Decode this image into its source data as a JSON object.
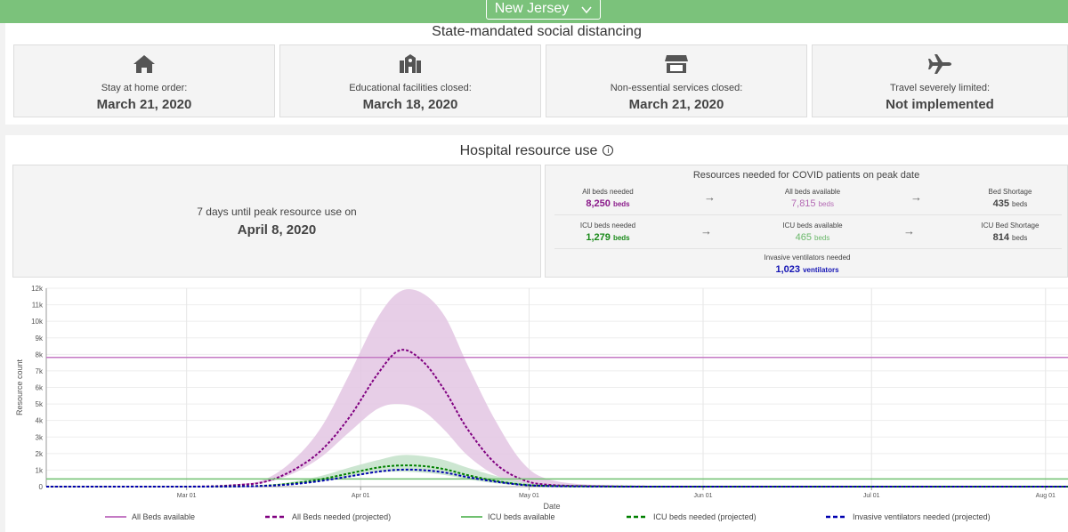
{
  "header": {
    "state": "New Jersey"
  },
  "social_distancing": {
    "title": "State-mandated social distancing",
    "cards": [
      {
        "icon": "home-icon",
        "label": "Stay at home order:",
        "value": "March 21, 2020"
      },
      {
        "icon": "school-icon",
        "label": "Educational facilities closed:",
        "value": "March 18, 2020"
      },
      {
        "icon": "store-icon",
        "label": "Non-essential services closed:",
        "value": "March 21, 2020"
      },
      {
        "icon": "airplane-icon",
        "label": "Travel severely limited:",
        "value": "Not implemented"
      }
    ]
  },
  "hospital": {
    "title": "Hospital resource use",
    "info_icon": "info-icon",
    "peak_line1": "7 days until peak resource use on",
    "peak_date": "April 8, 2020",
    "resources_title": "Resources needed for COVID patients on peak date",
    "all_beds_needed": {
      "label": "All beds needed",
      "value": "8,250",
      "unit": "beds"
    },
    "all_beds_available": {
      "label": "All beds available",
      "value": "7,815",
      "unit": "beds"
    },
    "bed_shortage": {
      "label": "Bed Shortage",
      "value": "435",
      "unit": "beds"
    },
    "icu_needed": {
      "label": "ICU beds needed",
      "value": "1,279",
      "unit": "beds"
    },
    "icu_available": {
      "label": "ICU beds available",
      "value": "465",
      "unit": "beds"
    },
    "icu_shortage": {
      "label": "ICU Bed Shortage",
      "value": "814",
      "unit": "beds"
    },
    "ventilators": {
      "label": "Invasive ventilators needed",
      "value": "1,023",
      "unit": "ventilators"
    }
  },
  "colors": {
    "header_green": "#7bc27b",
    "all_beds_available": "#c47ac4",
    "all_beds_needed": "#800080",
    "icu_available": "#70c070",
    "icu_needed": "#008000",
    "ventilators": "#0000b0",
    "band_purple": "#e3c6e3",
    "band_green": "#bfe0c5"
  },
  "chart_data": {
    "type": "line",
    "xlabel": "Date",
    "ylabel": "Resource count",
    "x_ticks": [
      "Mar 01",
      "Apr 01",
      "May 01",
      "Jun 01",
      "Jul 01",
      "Aug 01"
    ],
    "y_ticks": [
      "0",
      "1k",
      "2k",
      "3k",
      "4k",
      "5k",
      "6k",
      "7k",
      "8k",
      "9k",
      "10k",
      "11k",
      "12k"
    ],
    "ylim": [
      0,
      12000
    ],
    "xlim": [
      "2020-02-05",
      "2020-08-05"
    ],
    "grid": true,
    "legend_position": "bottom",
    "series": [
      {
        "name": "All Beds available",
        "style": "solid",
        "color": "#c47ac4",
        "x": [
          "2020-02-05",
          "2020-08-05"
        ],
        "values": [
          7815,
          7815
        ]
      },
      {
        "name": "All Beds needed (projected)",
        "style": "dashed",
        "color": "#800080",
        "x": [
          "2020-02-05",
          "2020-03-01",
          "2020-03-10",
          "2020-03-15",
          "2020-03-20",
          "2020-03-25",
          "2020-03-30",
          "2020-04-04",
          "2020-04-08",
          "2020-04-12",
          "2020-04-16",
          "2020-04-20",
          "2020-04-25",
          "2020-04-30",
          "2020-05-05",
          "2020-05-15",
          "2020-06-01",
          "2020-08-05"
        ],
        "values": [
          0,
          0,
          100,
          300,
          1000,
          2200,
          4200,
          6800,
          8250,
          7600,
          5800,
          3500,
          1400,
          400,
          100,
          20,
          0,
          0
        ]
      },
      {
        "name": "ICU beds available",
        "style": "solid",
        "color": "#70c070",
        "x": [
          "2020-02-05",
          "2020-08-05"
        ],
        "values": [
          465,
          465
        ]
      },
      {
        "name": "ICU beds needed (projected)",
        "style": "dashed",
        "color": "#008000",
        "x": [
          "2020-02-05",
          "2020-03-01",
          "2020-03-10",
          "2020-03-15",
          "2020-03-20",
          "2020-03-25",
          "2020-03-30",
          "2020-04-04",
          "2020-04-08",
          "2020-04-12",
          "2020-04-16",
          "2020-04-20",
          "2020-04-25",
          "2020-04-30",
          "2020-05-05",
          "2020-05-15",
          "2020-06-01",
          "2020-08-05"
        ],
        "values": [
          0,
          0,
          20,
          60,
          200,
          450,
          800,
          1150,
          1279,
          1250,
          1050,
          700,
          350,
          120,
          40,
          10,
          0,
          0
        ]
      },
      {
        "name": "Invasive ventilators needed (projected)",
        "style": "dashed",
        "color": "#0000b0",
        "x": [
          "2020-02-05",
          "2020-03-01",
          "2020-03-10",
          "2020-03-15",
          "2020-03-20",
          "2020-03-25",
          "2020-03-30",
          "2020-04-04",
          "2020-04-08",
          "2020-04-12",
          "2020-04-16",
          "2020-04-20",
          "2020-04-25",
          "2020-04-30",
          "2020-05-05",
          "2020-05-15",
          "2020-06-01",
          "2020-08-05"
        ],
        "values": [
          0,
          0,
          15,
          45,
          150,
          350,
          620,
          900,
          1023,
          1000,
          850,
          580,
          300,
          100,
          30,
          5,
          0,
          0
        ]
      }
    ],
    "uncertainty_bands": [
      {
        "series": "All Beds needed (projected)",
        "x": [
          "2020-02-05",
          "2020-03-01",
          "2020-03-10",
          "2020-03-15",
          "2020-03-20",
          "2020-03-25",
          "2020-03-30",
          "2020-04-04",
          "2020-04-08",
          "2020-04-12",
          "2020-04-16",
          "2020-04-20",
          "2020-04-25",
          "2020-04-30",
          "2020-05-05",
          "2020-05-15",
          "2020-06-01",
          "2020-08-05"
        ],
        "lower": [
          0,
          0,
          80,
          250,
          800,
          1800,
          3300,
          4700,
          5000,
          4600,
          3400,
          1900,
          700,
          200,
          50,
          10,
          0,
          0
        ],
        "upper": [
          0,
          0,
          150,
          450,
          1600,
          3600,
          6800,
          10200,
          11800,
          11700,
          10300,
          7400,
          4000,
          1400,
          400,
          60,
          0,
          0
        ]
      },
      {
        "series": "ICU beds needed (projected)",
        "x": [
          "2020-02-05",
          "2020-03-01",
          "2020-03-10",
          "2020-03-15",
          "2020-03-20",
          "2020-03-25",
          "2020-03-30",
          "2020-04-04",
          "2020-04-08",
          "2020-04-12",
          "2020-04-16",
          "2020-04-20",
          "2020-04-25",
          "2020-04-30",
          "2020-05-05",
          "2020-05-15",
          "2020-06-01",
          "2020-08-05"
        ],
        "lower": [
          0,
          0,
          10,
          40,
          140,
          320,
          600,
          850,
          900,
          850,
          700,
          450,
          200,
          70,
          20,
          5,
          0,
          0
        ],
        "upper": [
          0,
          0,
          30,
          90,
          300,
          650,
          1150,
          1600,
          1900,
          1850,
          1600,
          1150,
          650,
          250,
          80,
          15,
          0,
          0
        ]
      }
    ]
  }
}
